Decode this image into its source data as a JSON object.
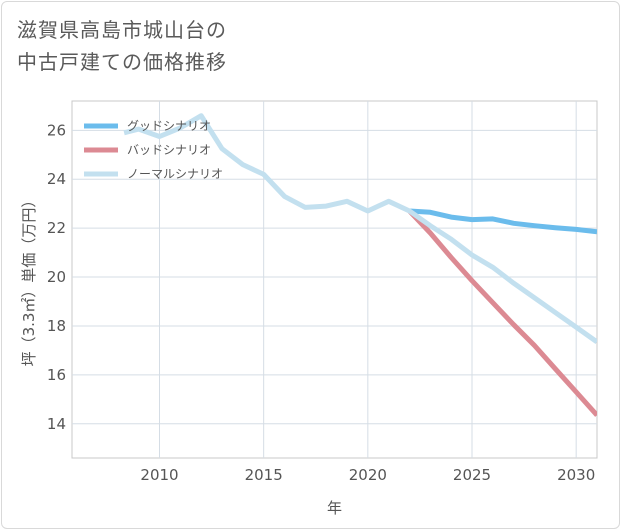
{
  "title_lines": [
    "滋賀県高島市城山台の",
    "中古戸建ての価格推移"
  ],
  "chart_data": {
    "type": "line",
    "xlabel": "年",
    "ylabel": "坪（3.3㎡）単価（万円）",
    "xlim": [
      2005.8,
      2031
    ],
    "ylim": [
      12.6,
      27.2
    ],
    "x_ticks": [
      2010,
      2015,
      2020,
      2025,
      2030
    ],
    "y_ticks": [
      14,
      16,
      18,
      20,
      22,
      24,
      26
    ],
    "x_tick_labels": [
      "2010",
      "2015",
      "2020",
      "2025",
      "2030"
    ],
    "y_tick_labels": [
      "14",
      "16",
      "18",
      "20",
      "22",
      "24",
      "26"
    ],
    "legend_position": "top-left",
    "series": [
      {
        "name": "グッドシナリオ",
        "color": "#6bbcec",
        "x": [
          2022,
          2023,
          2024,
          2025,
          2026,
          2027,
          2028,
          2029,
          2030,
          2031
        ],
        "y": [
          22.7,
          22.65,
          22.45,
          22.35,
          22.38,
          22.2,
          22.1,
          22.02,
          21.95,
          21.85
        ]
      },
      {
        "name": "バッドシナリオ",
        "color": "#dc8a93",
        "x": [
          2022,
          2023,
          2024,
          2025,
          2026,
          2027,
          2028,
          2029,
          2030,
          2031
        ],
        "y": [
          22.7,
          21.8,
          20.8,
          19.85,
          18.95,
          18.05,
          17.2,
          16.25,
          15.3,
          14.35
        ]
      },
      {
        "name": "ノーマルシナリオ",
        "color": "#c3e0ef",
        "x": [
          2008.3,
          2009,
          2010,
          2011,
          2012,
          2013,
          2014,
          2015,
          2016,
          2017,
          2018,
          2019,
          2020,
          2021,
          2022,
          2023,
          2024,
          2025,
          2026,
          2027,
          2028,
          2029,
          2030,
          2031
        ],
        "y": [
          25.9,
          26.05,
          25.75,
          26.1,
          26.6,
          25.25,
          24.6,
          24.2,
          23.3,
          22.85,
          22.9,
          23.1,
          22.7,
          23.1,
          22.7,
          22.1,
          21.55,
          20.9,
          20.4,
          19.75,
          19.15,
          18.55,
          17.95,
          17.35
        ]
      }
    ]
  }
}
